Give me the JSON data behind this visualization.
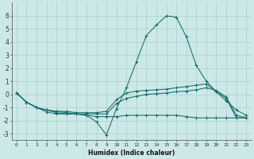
{
  "xlabel": "Humidex (Indice chaleur)",
  "background_color": "#cce9e8",
  "grid_color": "#aacece",
  "line_color": "#1a6b6b",
  "xlim": [
    -0.5,
    23.5
  ],
  "ylim": [
    -3.5,
    7.0
  ],
  "yticks": [
    -3,
    -2,
    -1,
    0,
    1,
    2,
    3,
    4,
    5,
    6
  ],
  "xticks": [
    0,
    1,
    2,
    3,
    4,
    5,
    6,
    7,
    8,
    9,
    10,
    11,
    12,
    13,
    14,
    15,
    16,
    17,
    18,
    19,
    20,
    21,
    22,
    23
  ],
  "lines": [
    {
      "x": [
        0,
        1,
        2,
        3,
        4,
        5,
        6,
        7,
        8,
        9,
        10,
        11,
        12,
        13,
        14,
        15,
        16,
        17,
        18,
        19,
        20,
        21,
        22,
        23
      ],
      "y": [
        0.1,
        -0.6,
        -1.0,
        -1.35,
        -1.5,
        -1.5,
        -1.5,
        -1.6,
        -2.1,
        -3.1,
        -1.1,
        0.5,
        2.5,
        4.5,
        5.3,
        6.0,
        5.9,
        4.4,
        2.2,
        1.0,
        0.2,
        -0.5,
        -1.2,
        -1.6
      ]
    },
    {
      "x": [
        0,
        1,
        2,
        3,
        4,
        5,
        6,
        7,
        8,
        9,
        10,
        11,
        12,
        13,
        14,
        15,
        16,
        17,
        18,
        19,
        20,
        21,
        22,
        23
      ],
      "y": [
        0.1,
        -0.6,
        -1.0,
        -1.2,
        -1.3,
        -1.3,
        -1.4,
        -1.4,
        -1.4,
        -1.3,
        -0.4,
        0.1,
        0.25,
        0.3,
        0.35,
        0.4,
        0.5,
        0.6,
        0.7,
        0.8,
        0.2,
        -0.3,
        -1.8,
        -1.8
      ]
    },
    {
      "x": [
        0,
        1,
        2,
        3,
        4,
        5,
        6,
        7,
        8,
        9,
        10,
        11,
        12,
        13,
        14,
        15,
        16,
        17,
        18,
        19,
        20,
        21,
        22,
        23
      ],
      "y": [
        0.1,
        -0.6,
        -1.0,
        -1.2,
        -1.3,
        -1.4,
        -1.5,
        -1.5,
        -1.5,
        -1.5,
        -0.7,
        -0.3,
        -0.15,
        0.0,
        0.05,
        0.1,
        0.2,
        0.25,
        0.35,
        0.5,
        0.3,
        -0.2,
        -1.6,
        -1.8
      ]
    },
    {
      "x": [
        0,
        1,
        2,
        3,
        4,
        5,
        6,
        7,
        8,
        9,
        10,
        11,
        12,
        13,
        14,
        15,
        16,
        17,
        18,
        19,
        20,
        21,
        22,
        23
      ],
      "y": [
        0.1,
        -0.6,
        -1.0,
        -1.2,
        -1.4,
        -1.5,
        -1.5,
        -1.6,
        -1.7,
        -1.7,
        -1.7,
        -1.6,
        -1.6,
        -1.6,
        -1.6,
        -1.6,
        -1.6,
        -1.7,
        -1.8,
        -1.8,
        -1.8,
        -1.8,
        -1.8,
        -1.8
      ]
    }
  ]
}
